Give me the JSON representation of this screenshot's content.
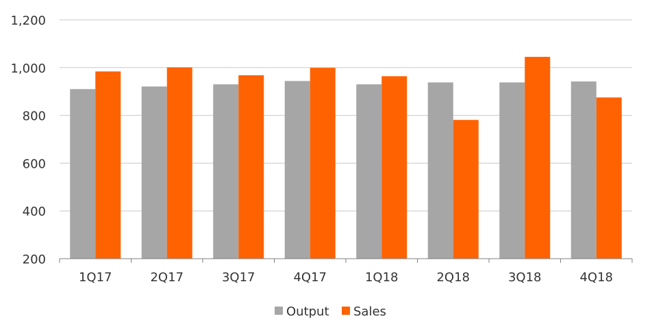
{
  "chart_data": {
    "type": "bar",
    "categories": [
      "1Q17",
      "2Q17",
      "3Q17",
      "4Q17",
      "1Q18",
      "2Q18",
      "3Q18",
      "4Q18"
    ],
    "series": [
      {
        "name": "Output",
        "values": [
          910,
          921,
          930,
          944,
          930,
          938,
          938,
          942
        ],
        "color": "#a6a6a6"
      },
      {
        "name": "Sales",
        "values": [
          984,
          1001,
          968,
          999,
          964,
          781,
          1045,
          875
        ],
        "color": "#ff6200"
      }
    ],
    "ylim": [
      200,
      1200
    ],
    "yticks": [
      200,
      400,
      600,
      800,
      1000,
      1200
    ],
    "ytick_labels": [
      "200",
      "400",
      "600",
      "800",
      "1,000",
      "1,200"
    ],
    "grid": true,
    "legend_position": "bottom"
  }
}
